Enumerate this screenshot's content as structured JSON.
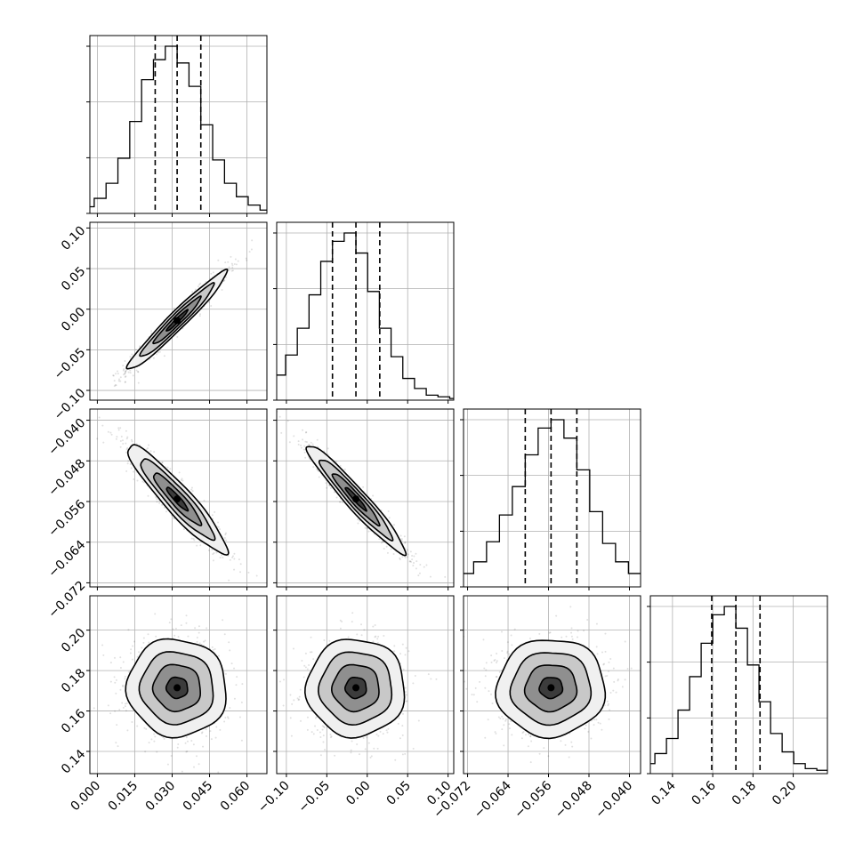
{
  "chart_data": {
    "type": "corner",
    "parameters": [
      {
        "range": [
          -0.003,
          0.068
        ],
        "ticks": [
          "0.000",
          "0.015",
          "0.030",
          "0.045",
          "0.060"
        ],
        "tick_values": [
          0.0,
          0.015,
          0.03,
          0.045,
          0.06
        ],
        "quantiles": [
          0.0232,
          0.032,
          0.0415
        ],
        "mean": 0.032,
        "sd": 0.0095
      },
      {
        "range": [
          -0.112,
          0.107
        ],
        "ticks": [
          "−0.10",
          "−0.05",
          "0.00",
          "0.05",
          "0.10"
        ],
        "tick_values": [
          -0.1,
          -0.05,
          0.0,
          0.05,
          0.1
        ],
        "quantiles": [
          -0.043,
          -0.014,
          0.0155
        ],
        "mean": -0.014,
        "sd": 0.029
      },
      {
        "range": [
          -0.0728,
          -0.0378
        ],
        "ticks": [
          "−0.072",
          "−0.064",
          "−0.056",
          "−0.048",
          "−0.040"
        ],
        "tick_values": [
          -0.072,
          -0.064,
          -0.056,
          -0.048,
          -0.04
        ],
        "quantiles": [
          -0.0606,
          -0.0555,
          -0.0504
        ],
        "mean": -0.0555,
        "sd": 0.0051
      },
      {
        "range": [
          0.129,
          0.217
        ],
        "ticks": [
          "0.14",
          "0.16",
          "0.18",
          "0.20"
        ],
        "tick_values": [
          0.14,
          0.16,
          0.18,
          0.2
        ],
        "quantiles": [
          0.1595,
          0.1715,
          0.1835
        ],
        "mean": 0.1715,
        "sd": 0.0115
      }
    ],
    "histograms": [
      [
        0.01,
        0.02,
        0.04,
        0.09,
        0.18,
        0.33,
        0.55,
        0.8,
        0.92,
        1.0,
        0.9,
        0.76,
        0.53,
        0.32,
        0.18,
        0.1,
        0.05,
        0.02,
        0.01,
        0.0
      ],
      [
        0.02,
        0.04,
        0.08,
        0.15,
        0.27,
        0.43,
        0.63,
        0.83,
        0.95,
        1.0,
        0.88,
        0.65,
        0.43,
        0.26,
        0.13,
        0.07,
        0.03,
        0.02,
        0.01,
        0.01
      ],
      [
        0.01,
        0.02,
        0.04,
        0.08,
        0.15,
        0.27,
        0.43,
        0.6,
        0.79,
        0.95,
        1.0,
        0.89,
        0.7,
        0.45,
        0.26,
        0.15,
        0.08,
        0.04,
        0.02,
        0.01
      ],
      [
        0.01,
        0.03,
        0.06,
        0.12,
        0.21,
        0.38,
        0.58,
        0.78,
        0.95,
        1.0,
        0.87,
        0.65,
        0.43,
        0.24,
        0.13,
        0.06,
        0.03,
        0.02,
        0.01,
        0.0
      ]
    ],
    "correlations": {
      "1-0": 0.97,
      "2-0": -0.93,
      "2-1": -0.96,
      "3-0": -0.03,
      "3-1": 0.0,
      "3-2": 0.02
    },
    "quantile_style": "dashed",
    "grid": true
  }
}
